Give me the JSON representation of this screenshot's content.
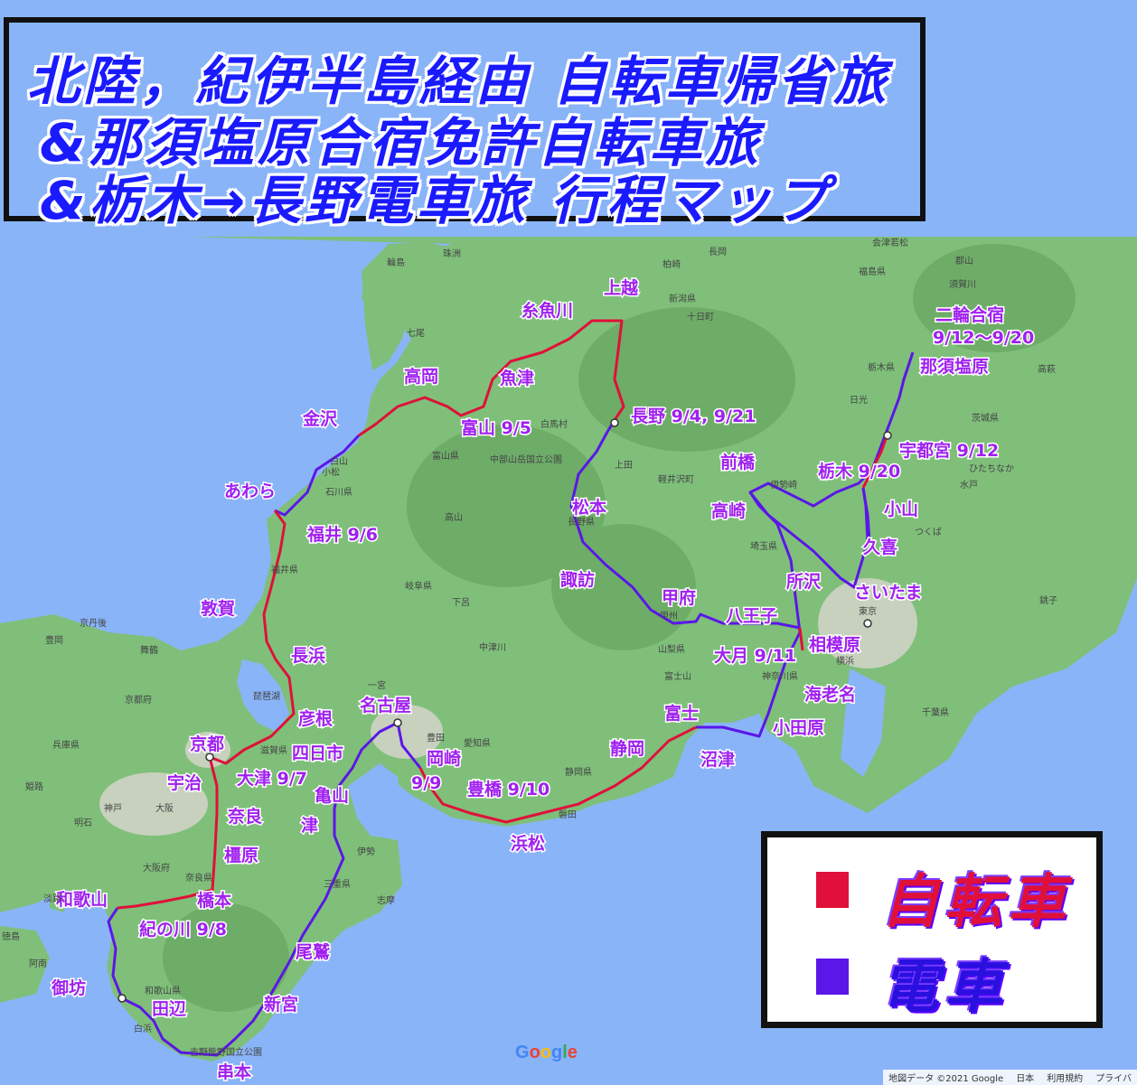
{
  "title": {
    "line1": "北陸，紀伊半島経由 自転車帰省旅",
    "line2": "&那須塩原合宿免許自転車旅",
    "line3": "&栃木→長野電車旅 行程マップ"
  },
  "legend": {
    "bicycle_label": "自転車",
    "train_label": "電車",
    "bicycle_color": "#e0103a",
    "train_color": "#5b16e8"
  },
  "colors": {
    "sea": "#8ab4f8",
    "land": "#7fbf7a",
    "bicycle_route": "#e0103a",
    "train_route": "#5b16e8",
    "label_text": "#a020f0"
  },
  "place_labels": [
    "上越",
    "糸魚川",
    "魚津",
    "高岡",
    "富山 9/5",
    "金沢",
    "あわら",
    "福井 9/6",
    "長野 9/4, 9/21",
    "松本",
    "諏訪",
    "甲府",
    "八王子",
    "大月 9/11",
    "相模原",
    "海老名",
    "小田原",
    "沼津",
    "富士",
    "静岡",
    "浜松",
    "豊橋 9/10",
    "9/9",
    "岡崎",
    "名古屋",
    "四日市",
    "亀山",
    "津",
    "尾鷲",
    "新宮",
    "串本",
    "田辺",
    "御坊",
    "和歌山",
    "紀の川 9/8",
    "橋本",
    "橿原",
    "奈良",
    "宇治",
    "大津 9/7",
    "京都",
    "彦根",
    "長浜",
    "敦賀",
    "前橋",
    "高崎",
    "所沢",
    "さいたま",
    "久喜",
    "小山",
    "栃木 9/20",
    "宇都宮 9/12",
    "那須塩原",
    "二輪合宿",
    "9/12〜9/20"
  ],
  "map_small_labels": [
    "輪島",
    "珠洲",
    "七尾",
    "柏崎",
    "長岡",
    "新潟県",
    "十日町",
    "白馬村",
    "富山県",
    "中部山岳国立公園",
    "石川県",
    "白山",
    "小松",
    "福井県",
    "岐阜県",
    "高山",
    "下呂",
    "中津川",
    "長野県",
    "上田",
    "軽井沢町",
    "伊勢崎",
    "埼玉県",
    "山梨県",
    "富士山",
    "甲州",
    "一宮",
    "愛知県",
    "豊田",
    "静岡県",
    "磐田",
    "伊勢",
    "三重県",
    "志摩",
    "大阪",
    "神戸",
    "明石",
    "姫路",
    "兵庫県",
    "京都府",
    "舞鶴",
    "豊岡",
    "京丹後",
    "滋賀県",
    "琵琶湖",
    "奈良県",
    "大阪府",
    "和歌山県",
    "白浜",
    "吉野熊野国立公園",
    "淡路",
    "徳島",
    "阿南",
    "福島県",
    "郡山",
    "須賀川",
    "栃木県",
    "日光",
    "茨城県",
    "ひたちなか",
    "水戸",
    "つくば",
    "千葉県",
    "東京",
    "横浜",
    "神奈川県",
    "会津若松",
    "銚子",
    "高萩"
  ],
  "map_attribution": [
    "地図データ ©2021 Google",
    "日本",
    "利用規約",
    "プライバ"
  ],
  "map_logo": "Google"
}
